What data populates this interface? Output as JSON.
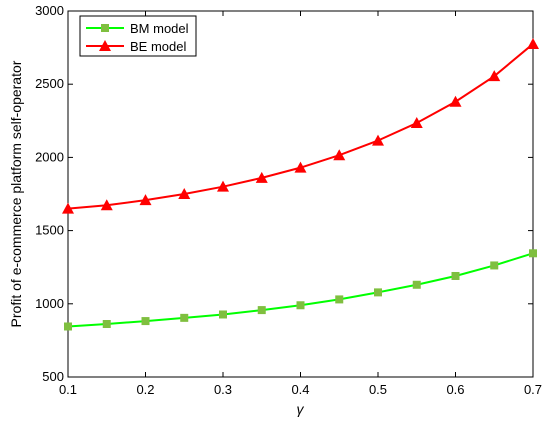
{
  "chart_data": {
    "type": "line",
    "xlabel": "γ",
    "ylabel": "Profit of e-commerce platform self-operator",
    "xlim": [
      0.1,
      0.7
    ],
    "ylim": [
      500,
      3000
    ],
    "xticks": [
      "0.1",
      "0.2",
      "0.3",
      "0.4",
      "0.5",
      "0.6",
      "0.7"
    ],
    "yticks": [
      "500",
      "1000",
      "1500",
      "2000",
      "2500",
      "3000"
    ],
    "legend_position": "top-left",
    "grid": false,
    "x": [
      0.1,
      0.15,
      0.2,
      0.25,
      0.3,
      0.35,
      0.4,
      0.45,
      0.5,
      0.55,
      0.6,
      0.65,
      0.7
    ],
    "series": [
      {
        "name": "BM model",
        "marker": "square",
        "color": "#00ff00",
        "marker_color": "#7fbf3f",
        "values": [
          845,
          862,
          882,
          904,
          927,
          957,
          990,
          1030,
          1078,
          1130,
          1190,
          1262,
          1345
        ]
      },
      {
        "name": "BE model",
        "marker": "triangle",
        "color": "#ff0000",
        "values": [
          1650,
          1673,
          1708,
          1750,
          1800,
          1860,
          1930,
          2015,
          2115,
          2235,
          2380,
          2555,
          2775
        ]
      }
    ]
  }
}
